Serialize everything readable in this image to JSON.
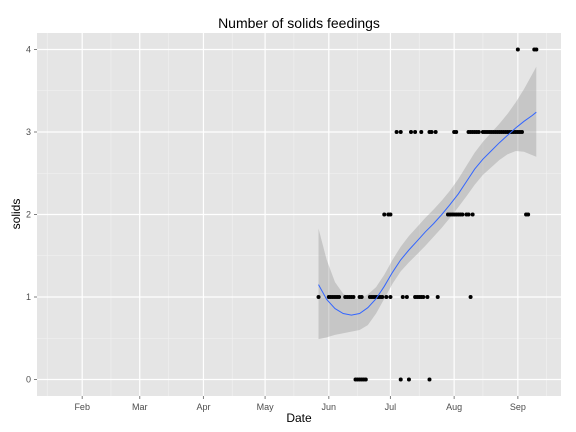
{
  "chart_data": {
    "type": "scatter",
    "title": "Number of solids feedings",
    "xlabel": "Date",
    "ylabel": "solids",
    "x_tick_labels": [
      "Feb",
      "Mar",
      "Apr",
      "May",
      "Jun",
      "Jul",
      "Aug",
      "Sep"
    ],
    "x_ticks": [
      "2013-02-01",
      "2013-03-01",
      "2013-04-01",
      "2013-05-01",
      "2013-06-01",
      "2013-07-01",
      "2013-08-01",
      "2013-09-01"
    ],
    "x_minor_ticks": [
      "2013-01-15",
      "2013-02-15",
      "2013-03-15",
      "2013-04-15",
      "2013-05-15",
      "2013-06-15",
      "2013-07-15",
      "2013-08-15",
      "2013-09-15"
    ],
    "xlim": [
      "2013-01-10",
      "2013-09-22"
    ],
    "y_ticks": [
      0,
      1,
      2,
      3,
      4
    ],
    "y_tick_labels": [
      "0",
      "1",
      "2",
      "3",
      "4"
    ],
    "ylim": [
      -0.2,
      4.2
    ],
    "grid": true,
    "legend": "none",
    "colors": {
      "panel": "#e5e5e5",
      "grid_major": "#ffffff",
      "grid_minor": "#f2f2f2",
      "points": "#000000",
      "smooth_line": "#3366ff",
      "confidence_band": "#999999"
    },
    "series": [
      {
        "type": "scatter",
        "points": [
          {
            "x": "2013-05-27",
            "y": 1
          },
          {
            "x": "2013-06-01",
            "y": 1
          },
          {
            "x": "2013-06-02",
            "y": 1
          },
          {
            "x": "2013-06-03",
            "y": 1
          },
          {
            "x": "2013-06-04",
            "y": 1
          },
          {
            "x": "2013-06-05",
            "y": 1
          },
          {
            "x": "2013-06-06",
            "y": 1
          },
          {
            "x": "2013-06-09",
            "y": 1
          },
          {
            "x": "2013-06-10",
            "y": 1
          },
          {
            "x": "2013-06-11",
            "y": 1
          },
          {
            "x": "2013-06-12",
            "y": 1
          },
          {
            "x": "2013-06-13",
            "y": 1
          },
          {
            "x": "2013-06-16",
            "y": 1
          },
          {
            "x": "2013-06-17",
            "y": 1
          },
          {
            "x": "2013-06-14",
            "y": 0
          },
          {
            "x": "2013-06-15",
            "y": 0
          },
          {
            "x": "2013-06-16",
            "y": 0
          },
          {
            "x": "2013-06-17",
            "y": 0
          },
          {
            "x": "2013-06-18",
            "y": 0
          },
          {
            "x": "2013-06-19",
            "y": 0
          },
          {
            "x": "2013-06-21",
            "y": 1
          },
          {
            "x": "2013-06-22",
            "y": 1
          },
          {
            "x": "2013-06-23",
            "y": 1
          },
          {
            "x": "2013-06-24",
            "y": 1
          },
          {
            "x": "2013-06-25",
            "y": 1
          },
          {
            "x": "2013-06-26",
            "y": 1
          },
          {
            "x": "2013-06-27",
            "y": 1
          },
          {
            "x": "2013-06-29",
            "y": 1
          },
          {
            "x": "2013-07-01",
            "y": 1
          },
          {
            "x": "2013-06-28",
            "y": 2
          },
          {
            "x": "2013-06-30",
            "y": 2
          },
          {
            "x": "2013-07-01",
            "y": 2
          },
          {
            "x": "2013-07-04",
            "y": 3
          },
          {
            "x": "2013-07-06",
            "y": 3
          },
          {
            "x": "2013-07-07",
            "y": 1
          },
          {
            "x": "2013-07-06",
            "y": 0
          },
          {
            "x": "2013-07-09",
            "y": 1
          },
          {
            "x": "2013-07-10",
            "y": 0
          },
          {
            "x": "2013-07-11",
            "y": 3
          },
          {
            "x": "2013-07-13",
            "y": 3
          },
          {
            "x": "2013-07-13",
            "y": 1
          },
          {
            "x": "2013-07-14",
            "y": 1
          },
          {
            "x": "2013-07-15",
            "y": 1
          },
          {
            "x": "2013-07-16",
            "y": 1
          },
          {
            "x": "2013-07-17",
            "y": 1
          },
          {
            "x": "2013-07-16",
            "y": 3
          },
          {
            "x": "2013-07-20",
            "y": 3
          },
          {
            "x": "2013-07-21",
            "y": 3
          },
          {
            "x": "2013-07-23",
            "y": 3
          },
          {
            "x": "2013-07-19",
            "y": 1
          },
          {
            "x": "2013-07-20",
            "y": 0
          },
          {
            "x": "2013-07-24",
            "y": 1
          },
          {
            "x": "2013-07-29",
            "y": 2
          },
          {
            "x": "2013-07-30",
            "y": 2
          },
          {
            "x": "2013-07-31",
            "y": 2
          },
          {
            "x": "2013-08-01",
            "y": 2
          },
          {
            "x": "2013-08-02",
            "y": 2
          },
          {
            "x": "2013-08-03",
            "y": 2
          },
          {
            "x": "2013-08-04",
            "y": 2
          },
          {
            "x": "2013-08-05",
            "y": 2
          },
          {
            "x": "2013-08-07",
            "y": 2
          },
          {
            "x": "2013-08-08",
            "y": 2
          },
          {
            "x": "2013-08-10",
            "y": 2
          },
          {
            "x": "2013-08-01",
            "y": 3
          },
          {
            "x": "2013-08-02",
            "y": 3
          },
          {
            "x": "2013-08-09",
            "y": 1
          },
          {
            "x": "2013-08-08",
            "y": 3
          },
          {
            "x": "2013-08-09",
            "y": 3
          },
          {
            "x": "2013-08-10",
            "y": 3
          },
          {
            "x": "2013-08-11",
            "y": 3
          },
          {
            "x": "2013-08-12",
            "y": 3
          },
          {
            "x": "2013-08-13",
            "y": 3
          },
          {
            "x": "2013-08-15",
            "y": 3
          },
          {
            "x": "2013-08-16",
            "y": 3
          },
          {
            "x": "2013-08-17",
            "y": 3
          },
          {
            "x": "2013-08-18",
            "y": 3
          },
          {
            "x": "2013-08-19",
            "y": 3
          },
          {
            "x": "2013-08-20",
            "y": 3
          },
          {
            "x": "2013-08-21",
            "y": 3
          },
          {
            "x": "2013-08-22",
            "y": 3
          },
          {
            "x": "2013-08-23",
            "y": 3
          },
          {
            "x": "2013-08-24",
            "y": 3
          },
          {
            "x": "2013-08-25",
            "y": 3
          },
          {
            "x": "2013-08-26",
            "y": 3
          },
          {
            "x": "2013-08-27",
            "y": 3
          },
          {
            "x": "2013-08-28",
            "y": 3
          },
          {
            "x": "2013-08-29",
            "y": 3
          },
          {
            "x": "2013-08-30",
            "y": 3
          },
          {
            "x": "2013-08-31",
            "y": 3
          },
          {
            "x": "2013-09-01",
            "y": 3
          },
          {
            "x": "2013-09-02",
            "y": 3
          },
          {
            "x": "2013-09-03",
            "y": 3
          },
          {
            "x": "2013-09-01",
            "y": 4
          },
          {
            "x": "2013-09-05",
            "y": 2
          },
          {
            "x": "2013-09-06",
            "y": 2
          },
          {
            "x": "2013-09-09",
            "y": 4
          },
          {
            "x": "2013-09-10",
            "y": 4
          }
        ]
      },
      {
        "type": "smooth",
        "line": [
          {
            "x": "2013-05-27",
            "y": 1.15
          },
          {
            "x": "2013-05-31",
            "y": 0.97
          },
          {
            "x": "2013-06-04",
            "y": 0.86
          },
          {
            "x": "2013-06-08",
            "y": 0.8
          },
          {
            "x": "2013-06-12",
            "y": 0.78
          },
          {
            "x": "2013-06-16",
            "y": 0.8
          },
          {
            "x": "2013-06-20",
            "y": 0.87
          },
          {
            "x": "2013-06-24",
            "y": 0.98
          },
          {
            "x": "2013-06-28",
            "y": 1.13
          },
          {
            "x": "2013-07-02",
            "y": 1.3
          },
          {
            "x": "2013-07-06",
            "y": 1.45
          },
          {
            "x": "2013-07-10",
            "y": 1.57
          },
          {
            "x": "2013-07-14",
            "y": 1.68
          },
          {
            "x": "2013-07-18",
            "y": 1.79
          },
          {
            "x": "2013-07-22",
            "y": 1.89
          },
          {
            "x": "2013-07-26",
            "y": 2.0
          },
          {
            "x": "2013-07-30",
            "y": 2.12
          },
          {
            "x": "2013-08-03",
            "y": 2.25
          },
          {
            "x": "2013-08-07",
            "y": 2.4
          },
          {
            "x": "2013-08-11",
            "y": 2.55
          },
          {
            "x": "2013-08-15",
            "y": 2.67
          },
          {
            "x": "2013-08-19",
            "y": 2.77
          },
          {
            "x": "2013-08-23",
            "y": 2.87
          },
          {
            "x": "2013-08-27",
            "y": 2.96
          },
          {
            "x": "2013-08-31",
            "y": 3.05
          },
          {
            "x": "2013-09-04",
            "y": 3.13
          },
          {
            "x": "2013-09-08",
            "y": 3.2
          },
          {
            "x": "2013-09-10",
            "y": 3.24
          }
        ],
        "band_upper": [
          1.83,
          1.45,
          1.18,
          1.04,
          0.98,
          0.98,
          1.03,
          1.12,
          1.27,
          1.45,
          1.61,
          1.74,
          1.85,
          1.96,
          2.06,
          2.17,
          2.29,
          2.43,
          2.59,
          2.75,
          2.88,
          2.99,
          3.1,
          3.22,
          3.36,
          3.52,
          3.7,
          3.79
        ],
        "band_lower": [
          0.49,
          0.51,
          0.54,
          0.56,
          0.58,
          0.6,
          0.66,
          0.8,
          0.98,
          1.16,
          1.31,
          1.42,
          1.52,
          1.62,
          1.73,
          1.84,
          1.96,
          2.09,
          2.22,
          2.36,
          2.48,
          2.57,
          2.66,
          2.73,
          2.77,
          2.76,
          2.72,
          2.7
        ]
      }
    ]
  }
}
